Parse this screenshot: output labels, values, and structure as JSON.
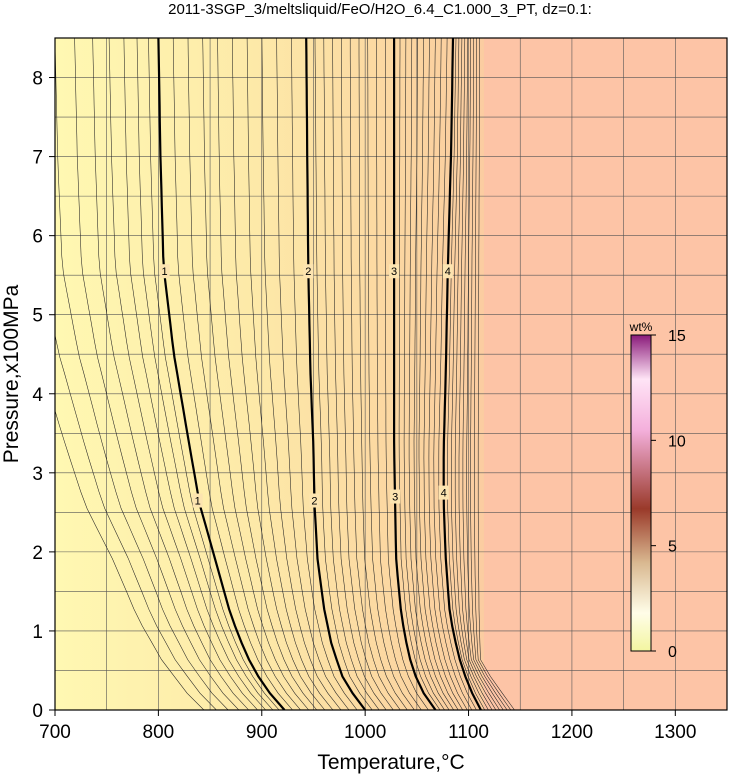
{
  "chart_data": {
    "type": "heatmap",
    "title": "2011-3SGP_3/meltsliquid/FeO/H2O_6.4_C1.000_3_PT, dz=0.1:",
    "xlabel": "Temperature,°C",
    "ylabel": "Pressure,x100MPa",
    "xlim": [
      700,
      1350
    ],
    "ylim": [
      0,
      8.5
    ],
    "xticks": [
      700,
      800,
      900,
      1000,
      1100,
      1200,
      1300
    ],
    "yticks": [
      0,
      1,
      2,
      3,
      4,
      5,
      6,
      7,
      8
    ],
    "xgrid_step": 50,
    "ygrid_step": 0.5,
    "grid": true,
    "contour_interval": 0.1,
    "labeled_contours": [
      {
        "level": 1,
        "label": "1",
        "points": [
          [
            800,
            8.5
          ],
          [
            802,
            7
          ],
          [
            805,
            5.6
          ],
          [
            815,
            4.5
          ],
          [
            828,
            3.5
          ],
          [
            840,
            2.6
          ],
          [
            855,
            1.9
          ],
          [
            870,
            1.2
          ],
          [
            885,
            0.7
          ],
          [
            902,
            0.3
          ],
          [
            922,
            0
          ]
        ],
        "labels_at": [
          [
            806,
            5.55
          ],
          [
            838,
            2.65
          ]
        ]
      },
      {
        "level": 2,
        "label": "2",
        "points": [
          [
            943,
            8.5
          ],
          [
            944,
            7
          ],
          [
            945,
            5.6
          ],
          [
            947,
            4.3
          ],
          [
            950,
            3.3
          ],
          [
            951,
            2.6
          ],
          [
            954,
            1.9
          ],
          [
            960,
            1.3
          ],
          [
            968,
            0.8
          ],
          [
            980,
            0.35
          ],
          [
            1000,
            0
          ]
        ],
        "labels_at": [
          [
            945,
            5.55
          ],
          [
            951,
            2.65
          ]
        ]
      },
      {
        "level": 3,
        "label": "3",
        "points": [
          [
            1028,
            8.5
          ],
          [
            1028,
            7
          ],
          [
            1028,
            5.6
          ],
          [
            1028,
            4.3
          ],
          [
            1028,
            3.3
          ],
          [
            1029,
            2.6
          ],
          [
            1030,
            1.9
          ],
          [
            1035,
            1.2
          ],
          [
            1042,
            0.7
          ],
          [
            1052,
            0.3
          ],
          [
            1068,
            0
          ]
        ],
        "labels_at": [
          [
            1028,
            5.55
          ],
          [
            1029,
            2.7
          ]
        ]
      },
      {
        "level": 4,
        "label": "4",
        "points": [
          [
            1085,
            8.5
          ],
          [
            1083,
            7
          ],
          [
            1080,
            5.6
          ],
          [
            1078,
            4.3
          ],
          [
            1076,
            3.3
          ],
          [
            1076,
            2.6
          ],
          [
            1078,
            1.9
          ],
          [
            1082,
            1.2
          ],
          [
            1090,
            0.7
          ],
          [
            1100,
            0.3
          ],
          [
            1112,
            0
          ]
        ],
        "labels_at": [
          [
            1080,
            5.55
          ],
          [
            1076,
            2.75
          ]
        ]
      }
    ],
    "saturated_region_start_temperature": 1115,
    "colorbar": {
      "unit": "wt%",
      "min": 0,
      "max": 15,
      "ticks": [
        0,
        5,
        10,
        15
      ],
      "colors": [
        "#f3f5a0",
        "#fffde8",
        "#e0c4a0",
        "#a04030",
        "#f6b8e0",
        "#ffe0f4",
        "#8a1a7a"
      ]
    },
    "colors": {
      "low": "#fff7b0",
      "high": "#fdc4a0",
      "saturated": "#fdc4a6"
    }
  }
}
